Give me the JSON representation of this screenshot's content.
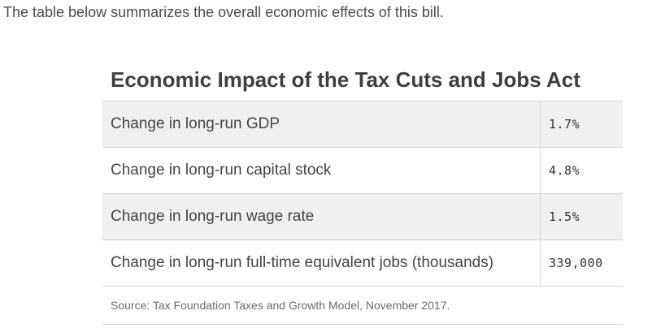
{
  "intro_text": "The table below summarizes the overall economic effects of this bill.",
  "table": {
    "title": "Economic Impact of the Tax Cuts and Jobs Act",
    "rows": [
      {
        "label": "Change in long-run GDP",
        "value": "1.7%"
      },
      {
        "label": "Change in long-run capital stock",
        "value": "4.8%"
      },
      {
        "label": "Change in long-run wage rate",
        "value": "1.5%"
      },
      {
        "label": "Change in long-run full-time equivalent jobs (thousands)",
        "value": "339,000"
      }
    ],
    "source": "Source: Tax Foundation Taxes and Growth Model, November 2017."
  },
  "colors": {
    "shaded_row": "#f0f0f0",
    "border": "#d4d4d4",
    "text": "#444444"
  }
}
